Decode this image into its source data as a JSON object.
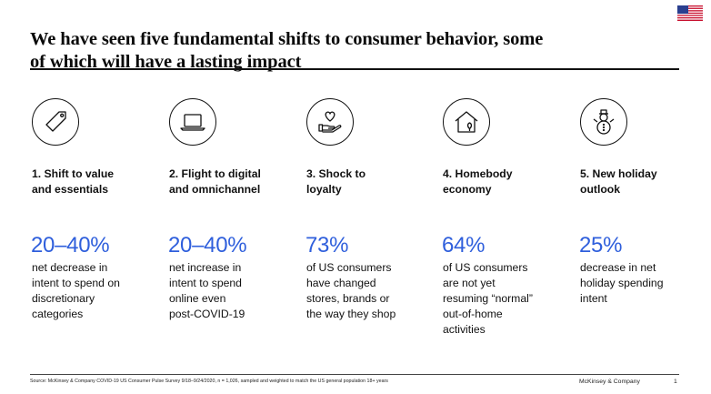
{
  "header": {
    "title_line1": "We have seen five fundamental shifts to consumer behavior, some",
    "title_line2": "of which will have a lasting impact"
  },
  "shifts": [
    {
      "icon": "price-tag-icon",
      "title_line1": "1. Shift to value",
      "title_line2": "and essentials",
      "stat": "20–40%",
      "desc": [
        "net decrease in",
        "intent to spend on",
        "discretionary",
        "categories"
      ]
    },
    {
      "icon": "laptop-icon",
      "title_line1": "2. Flight to digital",
      "title_line2": "and omnichannel",
      "stat": "20–40%",
      "desc": [
        "net increase in",
        "intent to spend",
        "online even",
        "post-COVID-19"
      ]
    },
    {
      "icon": "heart-in-hand-icon",
      "title_line1": "3. Shock to",
      "title_line2": "loyalty",
      "stat": "73%",
      "desc": [
        "of US consumers",
        "have changed",
        "stores, brands or",
        "the way they shop"
      ]
    },
    {
      "icon": "house-icon",
      "title_line1": "4. Homebody",
      "title_line2": "economy",
      "stat": "64%",
      "desc": [
        "of US consumers",
        "are not yet",
        "resuming “normal”",
        "out-of-home",
        "activities"
      ]
    },
    {
      "icon": "snowman-icon",
      "title_line1": "5. New holiday",
      "title_line2": "outlook",
      "stat": "25%",
      "desc": [
        "decrease in net",
        "holiday spending",
        "intent"
      ]
    }
  ],
  "footer": {
    "source": "Source: McKinsey & Company COVID-19 US Consumer Pulse Survey 9/18–9/24/2020, n = 1,026, sampled and weighted to match the US general population 18+ years",
    "company": "McKinsey & Company",
    "page": "1"
  },
  "colors": {
    "accent": "#2f5fdc",
    "text": "#111111"
  }
}
